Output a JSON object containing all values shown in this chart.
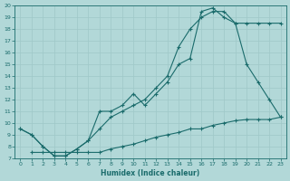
{
  "xlabel": "Humidex (Indice chaleur)",
  "bg_color": "#b2d8d8",
  "grid_color": "#9fc8c8",
  "line_color": "#1a6b6b",
  "xlim": [
    -0.5,
    23.5
  ],
  "ylim": [
    7,
    20
  ],
  "xticks": [
    0,
    1,
    2,
    3,
    4,
    5,
    6,
    7,
    8,
    9,
    10,
    11,
    12,
    13,
    14,
    15,
    16,
    17,
    18,
    19,
    20,
    21,
    22,
    23
  ],
  "yticks": [
    7,
    8,
    9,
    10,
    11,
    12,
    13,
    14,
    15,
    16,
    17,
    18,
    19,
    20
  ],
  "line1_x": [
    0,
    1,
    2,
    3,
    4,
    5,
    6,
    7,
    8,
    9,
    10,
    11,
    12,
    13,
    14,
    15,
    16,
    17,
    18,
    19,
    20,
    21,
    22,
    23
  ],
  "line1_y": [
    9.5,
    9.0,
    8.0,
    7.2,
    7.2,
    7.8,
    8.5,
    9.5,
    10.5,
    11.0,
    11.5,
    12.0,
    13.0,
    14.0,
    16.5,
    18.0,
    19.0,
    19.5,
    19.5,
    18.5,
    18.5,
    18.5,
    18.5,
    18.5
  ],
  "line2_x": [
    0,
    1,
    2,
    3,
    4,
    5,
    6,
    7,
    8,
    9,
    10,
    11,
    12,
    13,
    14,
    15,
    16,
    17,
    18,
    19,
    20,
    21,
    22,
    23
  ],
  "line2_y": [
    9.5,
    9.0,
    8.0,
    7.2,
    7.2,
    7.8,
    8.5,
    11.0,
    11.0,
    11.5,
    12.5,
    11.5,
    12.5,
    13.5,
    15.0,
    15.5,
    19.5,
    19.8,
    19.0,
    18.5,
    15.0,
    13.5,
    12.0,
    10.5
  ],
  "line3_x": [
    1,
    2,
    3,
    4,
    5,
    6,
    7,
    8,
    9,
    10,
    11,
    12,
    13,
    14,
    15,
    16,
    17,
    18,
    19,
    20,
    21,
    22,
    23
  ],
  "line3_y": [
    7.5,
    7.5,
    7.5,
    7.5,
    7.5,
    7.5,
    7.5,
    7.8,
    8.0,
    8.2,
    8.5,
    8.8,
    9.0,
    9.2,
    9.5,
    9.5,
    9.8,
    10.0,
    10.2,
    10.3,
    10.3,
    10.3,
    10.5
  ]
}
